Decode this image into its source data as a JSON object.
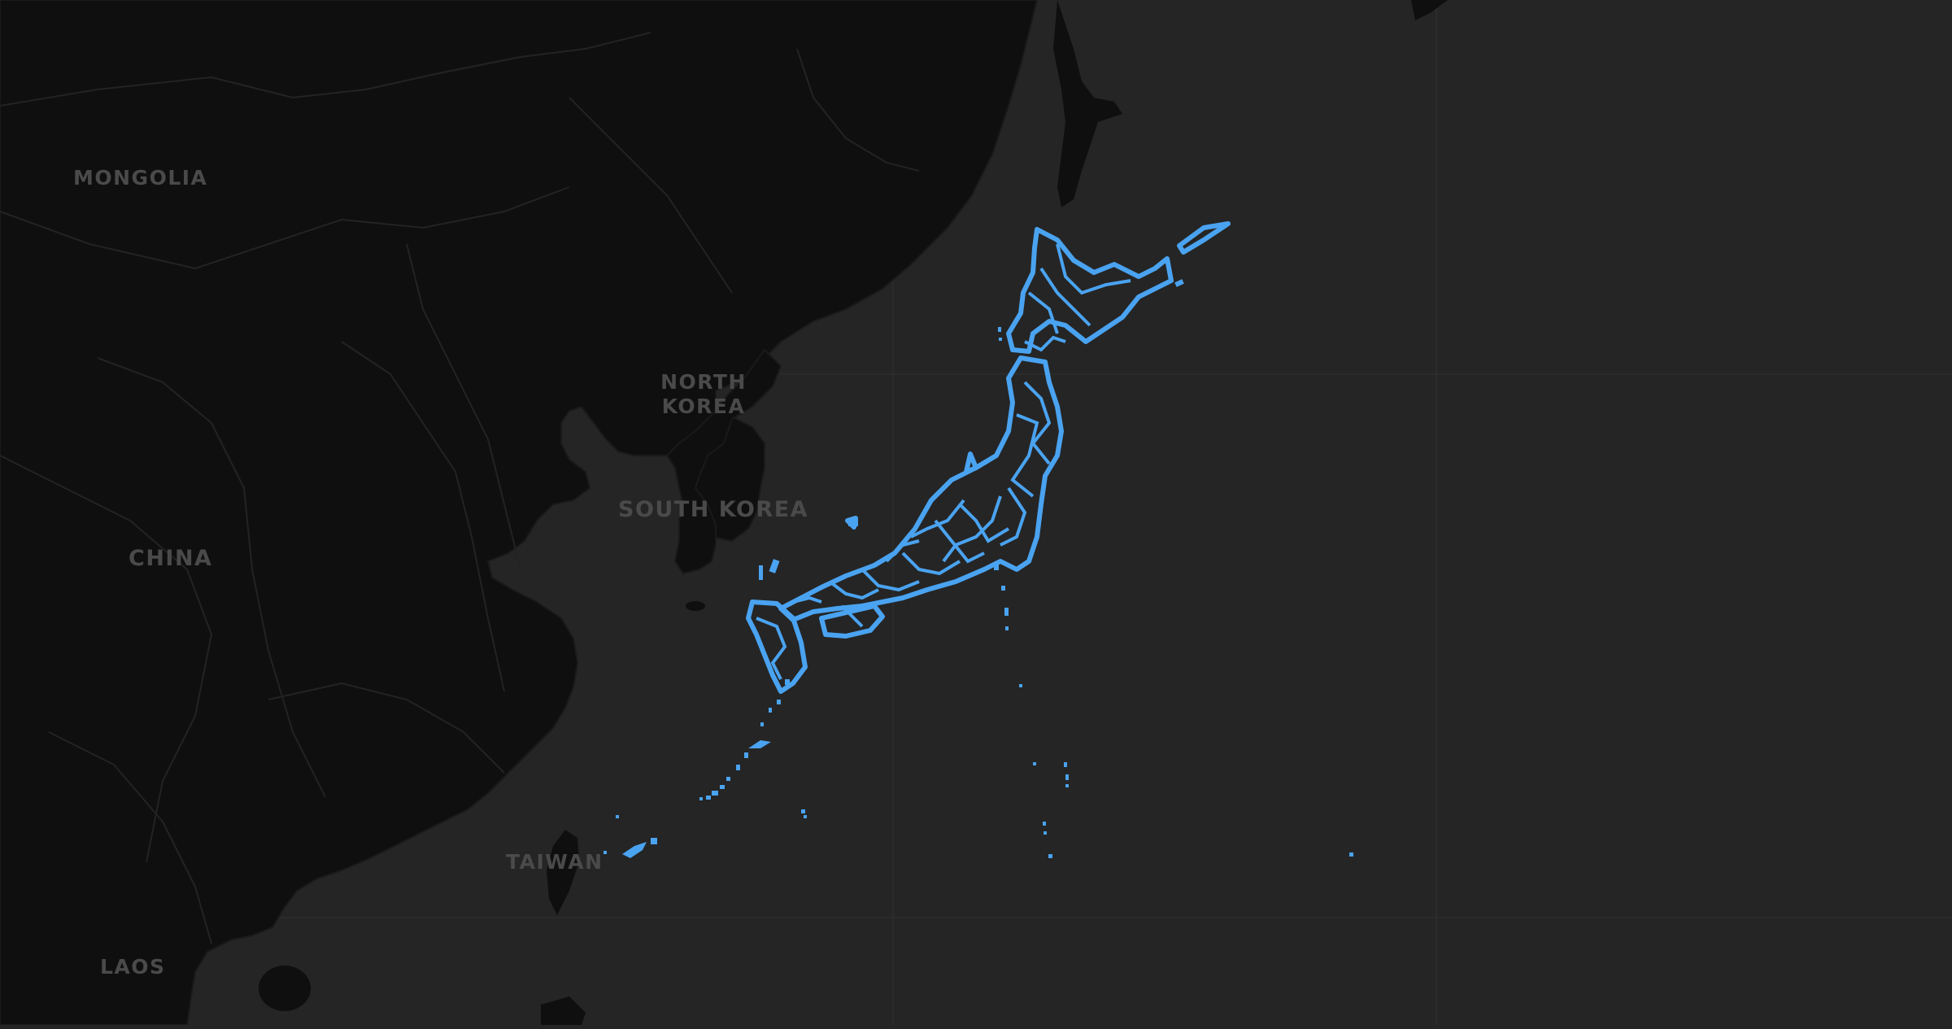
{
  "map": {
    "country_labels": {
      "mongolia": "MONGOLIA",
      "north_korea_line1": "NORTH",
      "north_korea_line2": "KOREA",
      "south_korea": "SOUTH KOREA",
      "china": "CHINA",
      "taiwan": "TAIWAN",
      "laos": "LAOS"
    },
    "highlighted_region": "Japan",
    "colors": {
      "ocean": "#252525",
      "land": "#0f0f0f",
      "borders": "#2e2e2e",
      "highlight": "#4aa3f0",
      "label": "#4a4a4a"
    }
  }
}
